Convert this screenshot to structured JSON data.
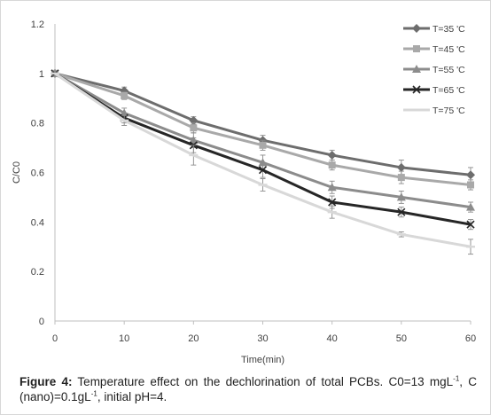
{
  "chart_data": {
    "type": "line",
    "title": "",
    "xlabel": "Time(min)",
    "ylabel": "C/C0",
    "x": [
      0,
      10,
      20,
      30,
      40,
      50,
      60
    ],
    "xlim": [
      0,
      60
    ],
    "ylim": [
      0,
      1.2
    ],
    "xticks": [
      "0",
      "10",
      "20",
      "30",
      "40",
      "50",
      "60"
    ],
    "yticks": [
      "0",
      "0.2",
      "0.4",
      "0.6",
      "0.8",
      "1",
      "1.2"
    ],
    "grid": false,
    "legend_position": "top-right",
    "series": [
      {
        "name": "T=35 'C",
        "marker": "diamond",
        "color": "#6d6d6d",
        "values": [
          1.0,
          0.93,
          0.81,
          0.73,
          0.67,
          0.62,
          0.59
        ],
        "error": [
          0.01,
          0.015,
          0.015,
          0.02,
          0.02,
          0.03,
          0.03
        ]
      },
      {
        "name": "T=45 'C",
        "marker": "square",
        "color": "#a9a9a9",
        "values": [
          1.0,
          0.91,
          0.78,
          0.71,
          0.63,
          0.58,
          0.55
        ],
        "error": [
          0.01,
          0.015,
          0.02,
          0.02,
          0.02,
          0.025,
          0.02
        ]
      },
      {
        "name": "T=55 'C",
        "marker": "triangle",
        "color": "#8c8c8c",
        "values": [
          1.0,
          0.84,
          0.73,
          0.64,
          0.54,
          0.5,
          0.46
        ],
        "error": [
          0.01,
          0.02,
          0.03,
          0.03,
          0.025,
          0.025,
          0.02
        ]
      },
      {
        "name": "T=65 'C",
        "marker": "x",
        "color": "#262626",
        "values": [
          1.0,
          0.82,
          0.71,
          0.61,
          0.48,
          0.44,
          0.39
        ],
        "error": [
          0.01,
          0.02,
          0.03,
          0.03,
          0.025,
          0.02,
          0.02
        ]
      },
      {
        "name": "T=75 'C",
        "marker": "dash",
        "color": "#d8d8d8",
        "values": [
          1.0,
          0.81,
          0.67,
          0.55,
          0.44,
          0.35,
          0.3
        ],
        "error": [
          0.01,
          0.02,
          0.04,
          0.025,
          0.025,
          0.01,
          0.03
        ]
      }
    ]
  },
  "caption": {
    "label": "Figure 4:",
    "text_part1": " Temperature effect on the dechlorination of total PCBs. C0=13 mgL",
    "sup1": "-1",
    "text_part2": ", C (nano)=0.1gL",
    "sup2": "-1",
    "text_part3": ", initial pH=4."
  }
}
